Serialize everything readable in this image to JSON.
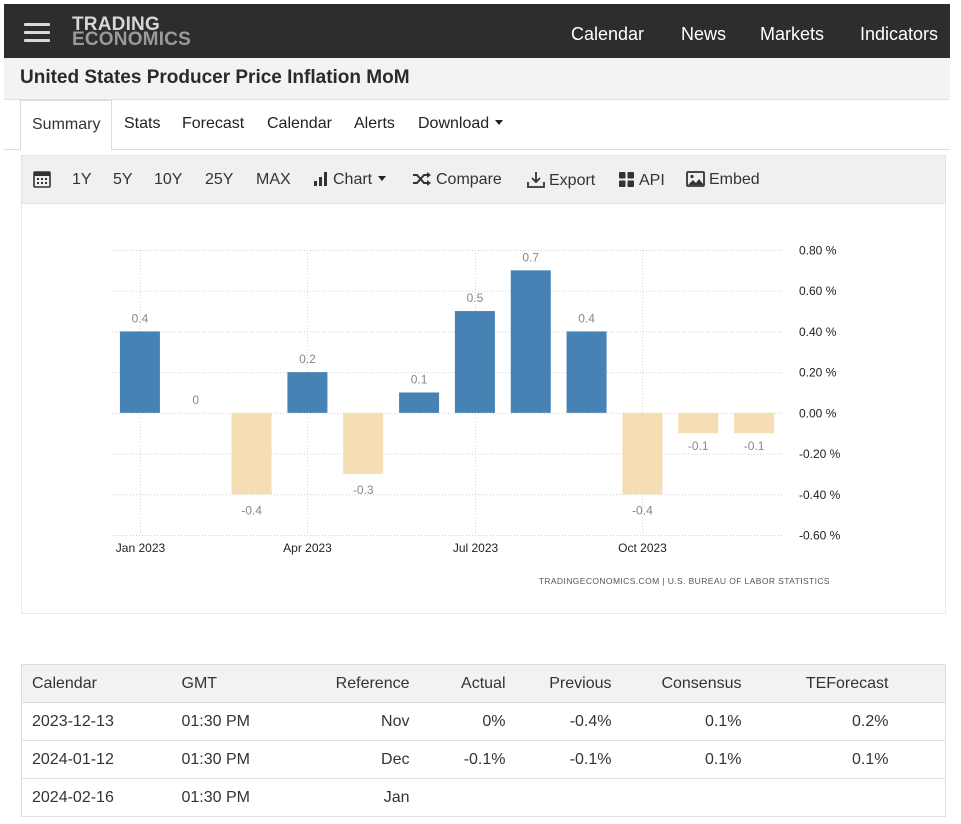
{
  "header": {
    "logo_line1": "TRADING",
    "logo_line2": "ECONOMICS",
    "nav": [
      "Calendar",
      "News",
      "Markets",
      "Indicators"
    ]
  },
  "page_title": "United States Producer Price Inflation MoM",
  "tabs": [
    {
      "label": "Summary",
      "active": true
    },
    {
      "label": "Stats"
    },
    {
      "label": "Forecast"
    },
    {
      "label": "Calendar"
    },
    {
      "label": "Alerts"
    },
    {
      "label": "Download",
      "dropdown": true
    }
  ],
  "toolbar": {
    "ranges": [
      "1Y",
      "5Y",
      "10Y",
      "25Y",
      "MAX"
    ],
    "chart_label": "Chart",
    "compare_label": "Compare",
    "export_label": "Export",
    "api_label": "API",
    "embed_label": "Embed"
  },
  "chart_data": {
    "type": "bar",
    "categories": [
      "Jan 2023",
      "Feb 2023",
      "Mar 2023",
      "Apr 2023",
      "May 2023",
      "Jun 2023",
      "Jul 2023",
      "Aug 2023",
      "Sep 2023",
      "Oct 2023",
      "Nov 2023",
      "Dec 2023"
    ],
    "values": [
      0.4,
      0,
      -0.4,
      0.2,
      -0.3,
      0.1,
      0.5,
      0.7,
      0.4,
      -0.4,
      -0.1,
      -0.1
    ],
    "data_labels": [
      "0.4",
      "0",
      "-0.4",
      "0.2",
      "-0.3",
      "0.1",
      "0.5",
      "0.7",
      "0.4",
      "-0.4",
      "-0.1",
      "-0.1"
    ],
    "x_tick_labels": [
      "Jan 2023",
      "Apr 2023",
      "Jul 2023",
      "Oct 2023"
    ],
    "y_ticks": [
      0.8,
      0.6,
      0.4,
      0.2,
      0.0,
      -0.2,
      -0.4,
      -0.6
    ],
    "y_tick_labels": [
      "0.80 %",
      "0.60 %",
      "0.40 %",
      "0.20 %",
      "0.00 %",
      "-0.20 %",
      "-0.40 %",
      "-0.60 %"
    ],
    "ylim": [
      -0.6,
      0.8
    ],
    "y_axis_side": "right",
    "grid": true,
    "colors": {
      "positive": "#4682b4",
      "negative": "#f5deb3",
      "label": "#888888"
    },
    "source": "TRADINGECONOMICS.COM | U.S. BUREAU OF LABOR STATISTICS"
  },
  "calendar_table": {
    "headers": [
      "Calendar",
      "GMT",
      "Reference",
      "Actual",
      "Previous",
      "Consensus",
      "TEForecast"
    ],
    "rows": [
      [
        "2023-12-13",
        "01:30 PM",
        "Nov",
        "0%",
        "-0.4%",
        "0.1%",
        "0.2%"
      ],
      [
        "2024-01-12",
        "01:30 PM",
        "Dec",
        "-0.1%",
        "-0.1%",
        "0.1%",
        "0.1%"
      ],
      [
        "2024-02-16",
        "01:30 PM",
        "Jan",
        "",
        "",
        "",
        ""
      ]
    ]
  }
}
